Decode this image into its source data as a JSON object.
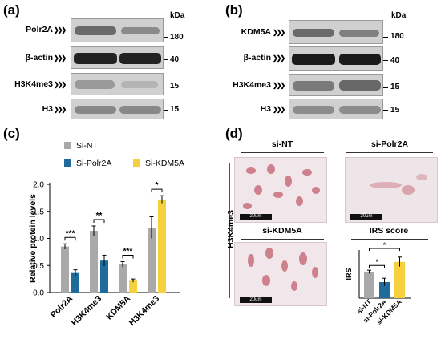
{
  "panels": {
    "a": "(a)",
    "b": "(b)",
    "c": "(c)",
    "d": "(d)"
  },
  "kda_label": "kDa",
  "blots_a": [
    {
      "label": "Polr2A",
      "mw": "180"
    },
    {
      "label": "β-actin",
      "mw": "40"
    },
    {
      "label": "H3K4me3",
      "mw": "15"
    },
    {
      "label": "H3",
      "mw": "15"
    }
  ],
  "blots_b": [
    {
      "label": "KDM5A",
      "mw": "180"
    },
    {
      "label": "β-actin",
      "mw": "40"
    },
    {
      "label": "H3K4me3",
      "mw": "15"
    },
    {
      "label": "H3",
      "mw": "15"
    }
  ],
  "arrow_glyph": "❯❯❯",
  "microscopy": {
    "row_label": "H3K4me3",
    "titles": [
      "si-NT",
      "si-Polr2A",
      "si-KDM5A"
    ],
    "scalebar": "20um"
  },
  "colors": {
    "si_nt": "#a9a9a9",
    "si_polr2a": "#1f6b9c",
    "si_kdm5a": "#f5d13e"
  },
  "chart_data": [
    {
      "type": "bar",
      "title": "",
      "ylabel": "Relative protein levels",
      "xlabel": "",
      "categories": [
        "Polr2A",
        "H3K4me3",
        "KDM5A",
        "H3K4me3"
      ],
      "ylim": [
        0,
        2.0
      ],
      "yticks": [
        "0.0",
        "0.5",
        "1.0",
        "1.5",
        "2.0"
      ],
      "legend": [
        "Si-NT",
        "Si-Polr2A",
        "Si-KDM5A"
      ],
      "legend_placement": "top",
      "groups": [
        {
          "category": "Polr2A",
          "bars": [
            {
              "series": "Si-NT",
              "value": 0.85,
              "err": 0.05
            },
            {
              "series": "Si-Polr2A",
              "value": 0.36,
              "err": 0.06
            }
          ],
          "sig": "***"
        },
        {
          "category": "H3K4me3",
          "bars": [
            {
              "series": "Si-NT",
              "value": 1.14,
              "err": 0.09
            },
            {
              "series": "Si-Polr2A",
              "value": 0.59,
              "err": 0.1
            }
          ],
          "sig": "**"
        },
        {
          "category": "KDM5A",
          "bars": [
            {
              "series": "Si-NT",
              "value": 0.52,
              "err": 0.05
            },
            {
              "series": "Si-KDM5A",
              "value": 0.22,
              "err": 0.03
            }
          ],
          "sig": "***"
        },
        {
          "category": "H3K4me3",
          "bars": [
            {
              "series": "Si-NT",
              "value": 1.2,
              "err": 0.2
            },
            {
              "series": "Si-KDM5A",
              "value": 1.72,
              "err": 0.07
            }
          ],
          "sig": "*"
        }
      ]
    },
    {
      "type": "bar",
      "title": "IRS score",
      "ylabel": "IRS",
      "xlabel": "",
      "categories": [
        "si-NT",
        "si-Polr2A",
        "si-KDM5A"
      ],
      "values": [
        8.2,
        5.0,
        11.3
      ],
      "errors": [
        0.5,
        1.2,
        1.5
      ],
      "ylim": [
        0,
        15
      ],
      "significance": [
        {
          "pair": [
            "si-NT",
            "si-Polr2A"
          ],
          "mark": "*"
        },
        {
          "pair": [
            "si-NT",
            "si-KDM5A"
          ],
          "mark": "*"
        }
      ]
    }
  ]
}
